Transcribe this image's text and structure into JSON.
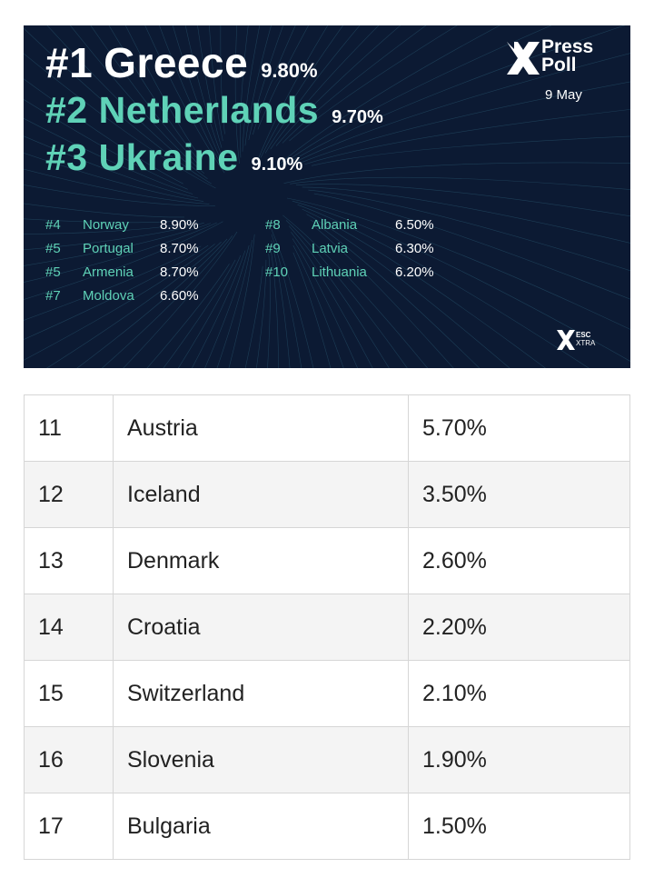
{
  "banner": {
    "top3": [
      {
        "rank": "#1",
        "country": "Greece",
        "pct": "9.80%"
      },
      {
        "rank": "#2",
        "country": "Netherlands",
        "pct": "9.70%"
      },
      {
        "rank": "#3",
        "country": "Ukraine",
        "pct": "9.10%"
      }
    ],
    "left_list": [
      {
        "rank": "#4",
        "country": "Norway",
        "pct": "8.90%"
      },
      {
        "rank": "#5",
        "country": "Portugal",
        "pct": "8.70%"
      },
      {
        "rank": "#5",
        "country": "Armenia",
        "pct": "8.70%"
      },
      {
        "rank": "#7",
        "country": "Moldova",
        "pct": "6.60%"
      }
    ],
    "right_list": [
      {
        "rank": "#8",
        "country": "Albania",
        "pct": "6.50%"
      },
      {
        "rank": "#9",
        "country": "Latvia",
        "pct": "6.30%"
      },
      {
        "rank": "#10",
        "country": "Lithuania",
        "pct": "6.20%"
      }
    ],
    "brand": {
      "line1": "Press",
      "line2": "Poll",
      "date": "9 May",
      "icon": "press-poll-x-logo"
    },
    "watermark": {
      "line1": "ESC",
      "line2": "XTRA",
      "icon": "esc-xtra-logo"
    },
    "colors": {
      "background": "#0c1a33",
      "accent": "#5fd2b7",
      "text": "#ffffff"
    }
  },
  "table": {
    "rows": [
      [
        "11",
        "Austria",
        "5.70%"
      ],
      [
        "12",
        "Iceland",
        "3.50%"
      ],
      [
        "13",
        "Denmark",
        "2.60%"
      ],
      [
        "14",
        "Croatia",
        "2.20%"
      ],
      [
        "15",
        "Switzerland",
        "2.10%"
      ],
      [
        "16",
        "Slovenia",
        "1.90%"
      ],
      [
        "17",
        "Bulgaria",
        "1.50%"
      ]
    ]
  }
}
